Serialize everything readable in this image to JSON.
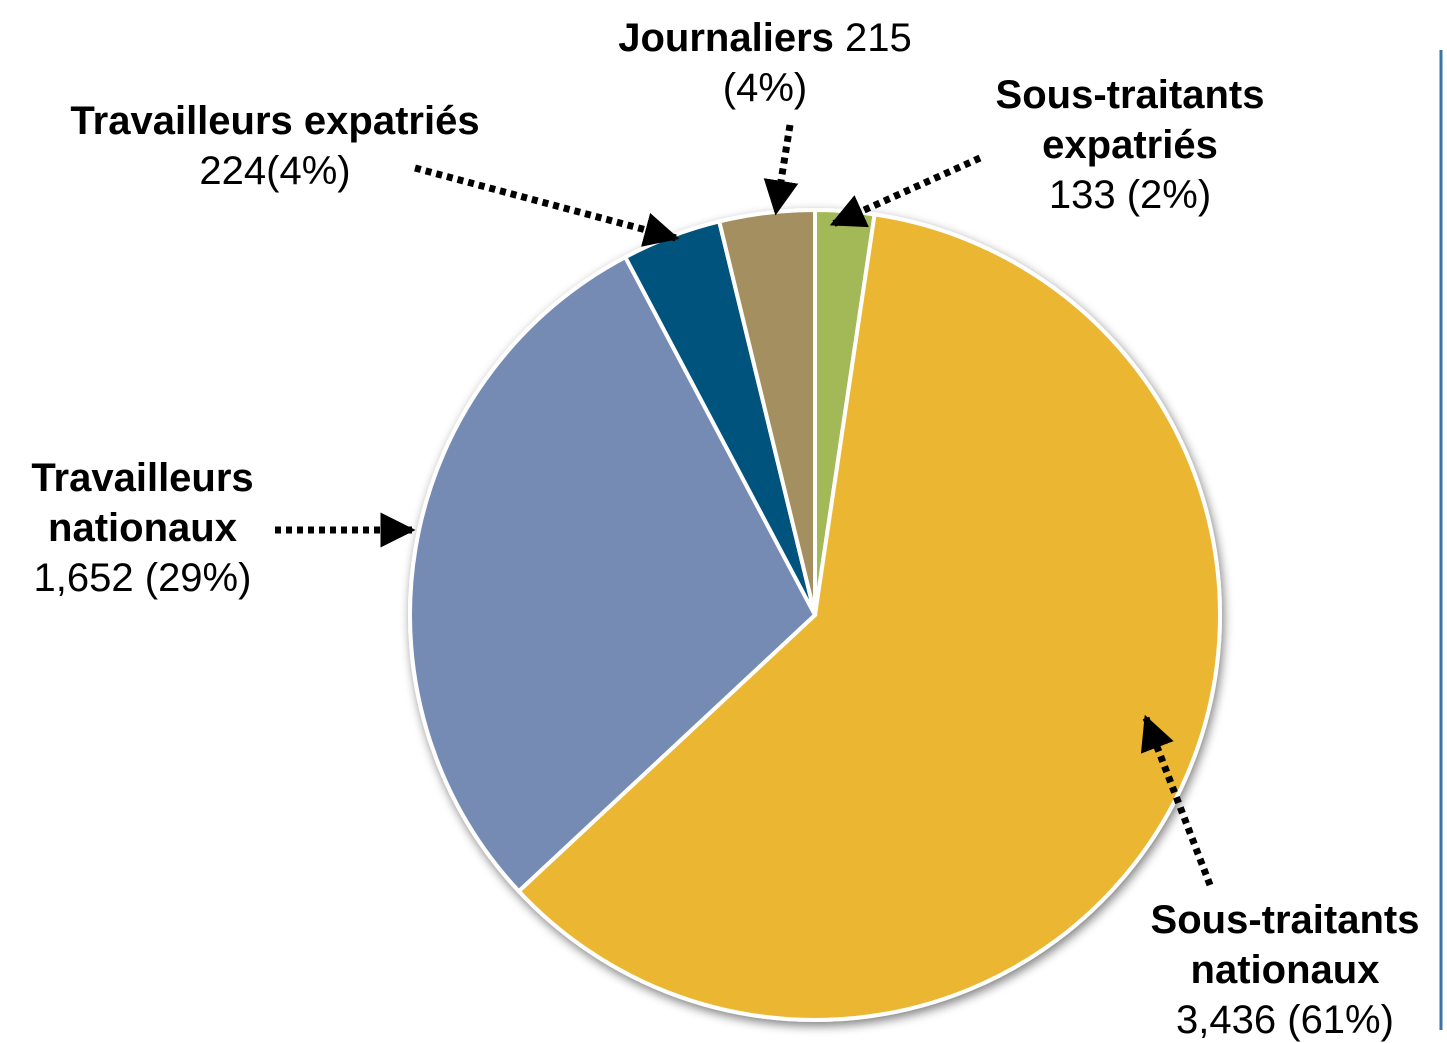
{
  "chart_data": {
    "type": "pie",
    "categories": [
      "Sous-traitants expatriés",
      "Sous-traitants nationaux",
      "Travailleurs nationaux",
      "Travailleurs expatriés",
      "Journaliers"
    ],
    "values": [
      133,
      3436,
      1652,
      224,
      215
    ],
    "value_labels": [
      "133 (2%)",
      "3,436 (61%)",
      "1,652 (29%)",
      "224(4%)",
      "215 (4%)"
    ],
    "colors": [
      "#a3b857",
      "#ebb733",
      "#748bb3",
      "#00527d",
      "#a38f5f"
    ]
  }
}
